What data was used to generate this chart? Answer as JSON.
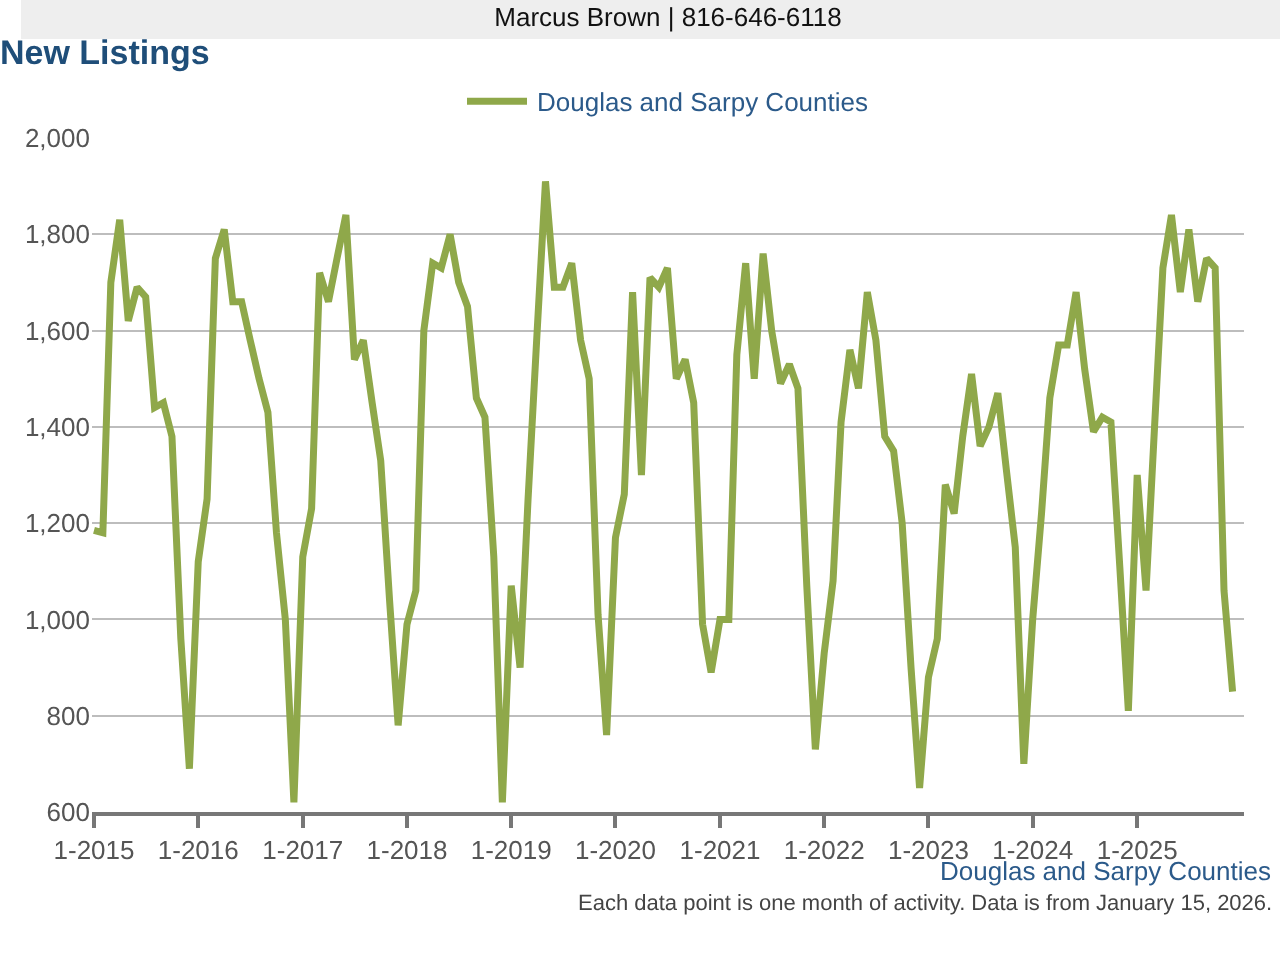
{
  "chart_data": {
    "type": "line",
    "title": "New Listings",
    "annotations": [
      "Marcus Brown | 816-646-6118",
      "Douglas and Sarpy Counties",
      "Each data point is one month of activity. Data is from January 15, 2026."
    ],
    "x": [
      "2015-01",
      "2015-02",
      "2015-03",
      "2015-04",
      "2015-05",
      "2015-06",
      "2015-07",
      "2015-08",
      "2015-09",
      "2015-10",
      "2015-11",
      "2015-12",
      "2016-01",
      "2016-02",
      "2016-03",
      "2016-04",
      "2016-05",
      "2016-06",
      "2016-07",
      "2016-08",
      "2016-09",
      "2016-10",
      "2016-11",
      "2016-12",
      "2017-01",
      "2017-02",
      "2017-03",
      "2017-04",
      "2017-05",
      "2017-06",
      "2017-07",
      "2017-08",
      "2017-09",
      "2017-10",
      "2017-11",
      "2017-12",
      "2018-01",
      "2018-02",
      "2018-03",
      "2018-04",
      "2018-05",
      "2018-06",
      "2018-07",
      "2018-08",
      "2018-09",
      "2018-10",
      "2018-11",
      "2018-12",
      "2019-01",
      "2019-02",
      "2019-03",
      "2019-04",
      "2019-05",
      "2019-06",
      "2019-07",
      "2019-08",
      "2019-09",
      "2019-10",
      "2019-11",
      "2019-12",
      "2020-01",
      "2020-02",
      "2020-03",
      "2020-04",
      "2020-05",
      "2020-06",
      "2020-07",
      "2020-08",
      "2020-09",
      "2020-10",
      "2020-11",
      "2020-12",
      "2021-01",
      "2021-02",
      "2021-03",
      "2021-04",
      "2021-05",
      "2021-06",
      "2021-07",
      "2021-08",
      "2021-09",
      "2021-10",
      "2021-11",
      "2021-12",
      "2022-01",
      "2022-02",
      "2022-03",
      "2022-04",
      "2022-05",
      "2022-06",
      "2022-07",
      "2022-08",
      "2022-09",
      "2022-10",
      "2022-11",
      "2022-12",
      "2023-01",
      "2023-02",
      "2023-03",
      "2023-04",
      "2023-05",
      "2023-06",
      "2023-07",
      "2023-08",
      "2023-09",
      "2023-10",
      "2023-11",
      "2023-12",
      "2024-01",
      "2024-02",
      "2024-03",
      "2024-04",
      "2024-05",
      "2024-06",
      "2024-07",
      "2024-08",
      "2024-09",
      "2024-10",
      "2024-11",
      "2024-12",
      "2025-01",
      "2025-02",
      "2025-03",
      "2025-04",
      "2025-05",
      "2025-06",
      "2025-07",
      "2025-08",
      "2025-09",
      "2025-10",
      "2025-11",
      "2025-12"
    ],
    "xlim": [
      "2014-12-25",
      "2026-01-10"
    ],
    "xticks": [
      {
        "value": "2015-01-01",
        "label": "1-2015"
      },
      {
        "value": "2016-01-01",
        "label": "1-2016"
      },
      {
        "value": "2017-01-01",
        "label": "1-2017"
      },
      {
        "value": "2018-01-01",
        "label": "1-2018"
      },
      {
        "value": "2019-01-01",
        "label": "1-2019"
      },
      {
        "value": "2020-01-01",
        "label": "1-2020"
      },
      {
        "value": "2021-01-01",
        "label": "1-2021"
      },
      {
        "value": "2022-01-01",
        "label": "1-2022"
      },
      {
        "value": "2023-01-01",
        "label": "1-2023"
      },
      {
        "value": "2024-01-01",
        "label": "1-2024"
      },
      {
        "value": "2025-01-01",
        "label": "1-2025"
      }
    ],
    "ylim": [
      600,
      2000
    ],
    "yticks": [
      {
        "value": 600,
        "label": "600"
      },
      {
        "value": 800,
        "label": "800"
      },
      {
        "value": 1000,
        "label": "1,000"
      },
      {
        "value": 1200,
        "label": "1,200"
      },
      {
        "value": 1400,
        "label": "1,400"
      },
      {
        "value": 1600,
        "label": "1,600"
      },
      {
        "value": 1800,
        "label": "1,800"
      },
      {
        "value": 2000,
        "label": "2,000"
      }
    ],
    "grid": "y",
    "legend": "top",
    "marker": "none",
    "line_style": "solid",
    "series": [
      {
        "name": "Douglas and Sarpy Counties",
        "color": "#8fa84a",
        "values": [
          1185,
          1180,
          1700,
          1830,
          1620,
          1690,
          1670,
          1440,
          1450,
          1380,
          960,
          690,
          1120,
          1250,
          1750,
          1810,
          1660,
          1660,
          1580,
          1500,
          1430,
          1180,
          1000,
          620,
          1130,
          1230,
          1720,
          1660,
          1750,
          1840,
          1540,
          1580,
          1450,
          1330,
          1040,
          780,
          990,
          1060,
          1600,
          1740,
          1730,
          1800,
          1700,
          1650,
          1460,
          1420,
          1130,
          620,
          1070,
          900,
          1250,
          1590,
          1910,
          1690,
          1690,
          1740,
          1580,
          1500,
          1010,
          760,
          1170,
          1260,
          1680,
          1300,
          1710,
          1690,
          1730,
          1500,
          1540,
          1450,
          990,
          890,
          1000,
          1000,
          1550,
          1740,
          1500,
          1760,
          1600,
          1490,
          1530,
          1480,
          1070,
          730,
          930,
          1080,
          1410,
          1560,
          1480,
          1680,
          1580,
          1380,
          1350,
          1200,
          900,
          650,
          880,
          960,
          1280,
          1220,
          1380,
          1510,
          1360,
          1400,
          1470,
          1310,
          1150,
          700,
          1000,
          1220,
          1460,
          1570,
          1570,
          1680,
          1520,
          1390,
          1420,
          1410,
          1110,
          810,
          1300,
          1060,
          1380,
          1730,
          1840,
          1680,
          1810,
          1660,
          1750,
          1730,
          1060,
          850
        ]
      }
    ]
  }
}
